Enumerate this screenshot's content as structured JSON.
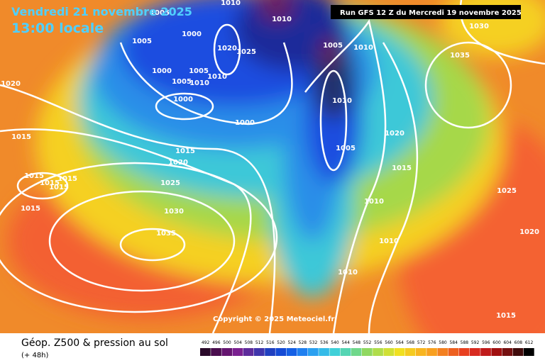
{
  "header": {
    "date": "Vendredi 21 novembre 2025",
    "time": "13:00 locale",
    "run": "Run GFS 12 Z du Mercredi 19 novembre 2025"
  },
  "copyright": "Copyright © 2025 Meteociel.fr",
  "legend": {
    "title": "Géop. Z500 & pression au sol",
    "lead": "(+ 48h)",
    "scale": [
      492,
      496,
      500,
      504,
      508,
      512,
      516,
      520,
      524,
      528,
      532,
      536,
      540,
      544,
      548,
      552,
      556,
      560,
      564,
      568,
      572,
      576,
      580,
      584,
      588,
      592,
      596,
      600,
      604,
      608,
      612
    ]
  },
  "isobar_labels": [
    "1005",
    "1005",
    "1000",
    "1020",
    "1025",
    "1000",
    "1005",
    "1005",
    "1010",
    "1010",
    "1000",
    "1000",
    "1010",
    "1010",
    "1005",
    "1010",
    "1010",
    "1005",
    "1020",
    "1015",
    "1010",
    "1010",
    "1010",
    "1035",
    "1030",
    "1025",
    "1020",
    "1015",
    "1015",
    "1020",
    "1015",
    "1015",
    "1015",
    "1015",
    "1015",
    "1015",
    "1020",
    "1025",
    "1030",
    "1035"
  ]
}
